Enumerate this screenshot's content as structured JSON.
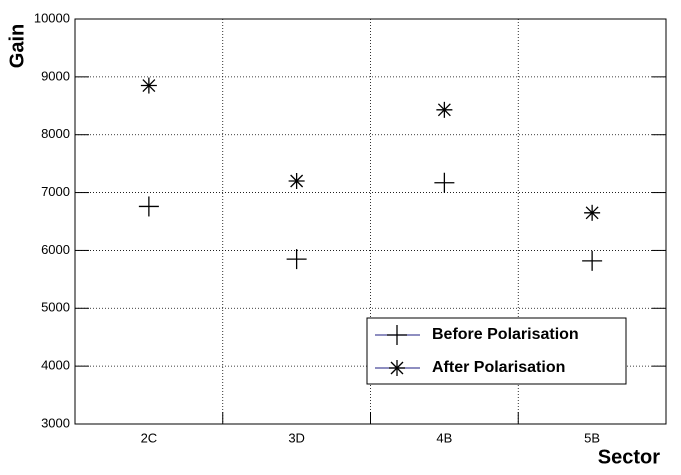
{
  "chart_data": {
    "type": "scatter",
    "x_label": "Sector",
    "y_label": "Gain",
    "categories": [
      "2C",
      "3D",
      "4B",
      "5B"
    ],
    "series": [
      {
        "name": "Before Polarisation",
        "marker": "plus",
        "color": "#000000",
        "values": [
          6760,
          5850,
          7170,
          5820
        ]
      },
      {
        "name": "After Polarisation",
        "marker": "star",
        "color": "#000000",
        "values": [
          8850,
          7200,
          8430,
          6650
        ]
      }
    ],
    "ylim": [
      3000,
      10000
    ],
    "yticks": [
      3000,
      4000,
      5000,
      6000,
      7000,
      8000,
      9000,
      10000
    ],
    "grid": true,
    "legend": "lower right"
  }
}
